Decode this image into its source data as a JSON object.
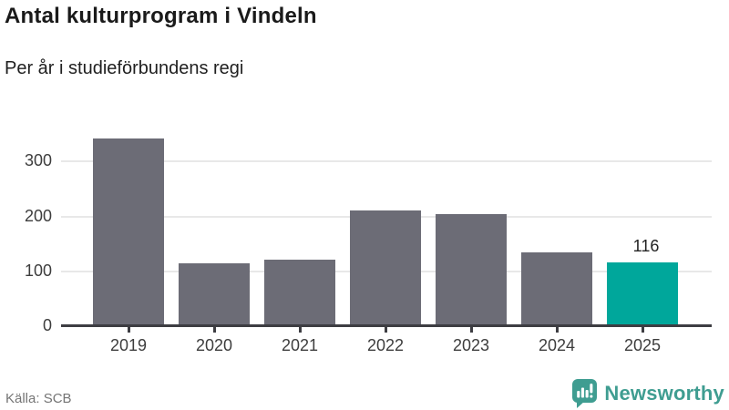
{
  "header": {
    "title": "Antal kulturprogram i Vindeln",
    "subtitle": "Per år i studieförbundens regi"
  },
  "chart_data": {
    "type": "bar",
    "title": "Antal kulturprogram i Vindeln",
    "subtitle": "Per år i studieförbundens regi",
    "categories": [
      "2019",
      "2020",
      "2021",
      "2022",
      "2023",
      "2024",
      "2025"
    ],
    "values": [
      342,
      114,
      121,
      210,
      204,
      134,
      116
    ],
    "value_labels": [
      null,
      null,
      null,
      null,
      null,
      null,
      "116"
    ],
    "highlight_index": 6,
    "yticks": [
      0,
      100,
      200,
      300
    ],
    "ylim": [
      0,
      355
    ],
    "grid": "horizontal",
    "legend": "none",
    "xlabel": "",
    "ylabel": ""
  },
  "colors": {
    "bar": "#6c6c76",
    "highlight": "#00a79b",
    "axis": "#3d3d42",
    "grid": "#e8e8e8",
    "brand": "#3f9d91"
  },
  "footer": {
    "source": "Källa: SCB",
    "brand": "Newsworthy"
  }
}
